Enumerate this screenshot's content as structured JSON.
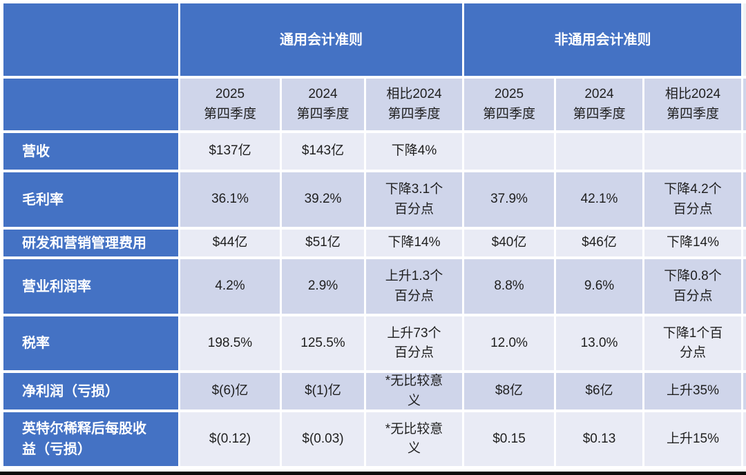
{
  "colors": {
    "header_blue": "#4472C4",
    "band_dark": "#CFD5EA",
    "band_light": "#E9EBF5",
    "header_text": "#FFFFFF",
    "body_text": "#1F1F1F",
    "bottom_rule": "#0B0B0B",
    "page_background": "#FFFFFF"
  },
  "table": {
    "group_headers": [
      {
        "label": "通用会计准则"
      },
      {
        "label": "非通用会计准则"
      }
    ],
    "column_headers": [
      "2025\n第四季度",
      "2024\n第四季度",
      "相比2024\n第四季度",
      "2025\n第四季度",
      "2024\n第四季度",
      "相比2024\n第四季度"
    ],
    "rows": [
      {
        "label": "营收",
        "cells": [
          "$137亿",
          "$143亿",
          "下降4%",
          "",
          "",
          ""
        ]
      },
      {
        "label": "毛利率",
        "cells": [
          "36.1%",
          "39.2%",
          "下降3.1个\n百分点",
          "37.9%",
          "42.1%",
          "下降4.2个\n百分点"
        ]
      },
      {
        "label": "研发和营销管理费用",
        "cells": [
          "$44亿",
          "$51亿",
          "下降14%",
          "$40亿",
          "$46亿",
          "下降14%"
        ]
      },
      {
        "label": "营业利润率",
        "cells": [
          "4.2%",
          "2.9%",
          "上升1.3个\n百分点",
          "8.8%",
          "9.6%",
          "下降0.8个\n百分点"
        ]
      },
      {
        "label": "税率",
        "cells": [
          "198.5%",
          "125.5%",
          "上升73个\n百分点",
          "12.0%",
          "13.0%",
          "下降1个百\n分点"
        ]
      },
      {
        "label": "净利润（亏损）",
        "cells": [
          "$(6)亿",
          "$(1)亿",
          "*无比较意\n义",
          "$8亿",
          "$6亿",
          "上升35%"
        ]
      },
      {
        "label": "英特尔稀释后每股收\n益（亏损）",
        "cells": [
          "$(0.12)",
          "$(0.03)",
          "*无比较意\n义",
          "$0.15",
          "$0.13",
          "上升15%"
        ]
      }
    ]
  },
  "chart_data": {
    "type": "table",
    "column_groups": [
      {
        "name": "通用会计准则",
        "columns": [
          "2025第四季度",
          "2024第四季度",
          "相比2024第四季度"
        ]
      },
      {
        "name": "非通用会计准则",
        "columns": [
          "2025第四季度",
          "2024第四季度",
          "相比2024第四季度"
        ]
      }
    ],
    "rows": [
      {
        "metric": "营收",
        "gaap": [
          "$137亿",
          "$143亿",
          "下降4%"
        ],
        "non_gaap": [
          "",
          "",
          ""
        ]
      },
      {
        "metric": "毛利率",
        "gaap": [
          "36.1%",
          "39.2%",
          "下降3.1个百分点"
        ],
        "non_gaap": [
          "37.9%",
          "42.1%",
          "下降4.2个百分点"
        ]
      },
      {
        "metric": "研发和营销管理费用",
        "gaap": [
          "$44亿",
          "$51亿",
          "下降14%"
        ],
        "non_gaap": [
          "$40亿",
          "$46亿",
          "下降14%"
        ]
      },
      {
        "metric": "营业利润率",
        "gaap": [
          "4.2%",
          "2.9%",
          "上升1.3个百分点"
        ],
        "non_gaap": [
          "8.8%",
          "9.6%",
          "下降0.8个百分点"
        ]
      },
      {
        "metric": "税率",
        "gaap": [
          "198.5%",
          "125.5%",
          "上升73个百分点"
        ],
        "non_gaap": [
          "12.0%",
          "13.0%",
          "下降1个百分点"
        ]
      },
      {
        "metric": "净利润（亏损）",
        "gaap": [
          "$(6)亿",
          "$(1)亿",
          "*无比较意义"
        ],
        "non_gaap": [
          "$8亿",
          "$6亿",
          "上升35%"
        ]
      },
      {
        "metric": "英特尔稀释后每股收益（亏损）",
        "gaap": [
          "$(0.12)",
          "$(0.03)",
          "*无比较意义"
        ],
        "non_gaap": [
          "$0.15",
          "$0.13",
          "上升15%"
        ]
      }
    ]
  }
}
